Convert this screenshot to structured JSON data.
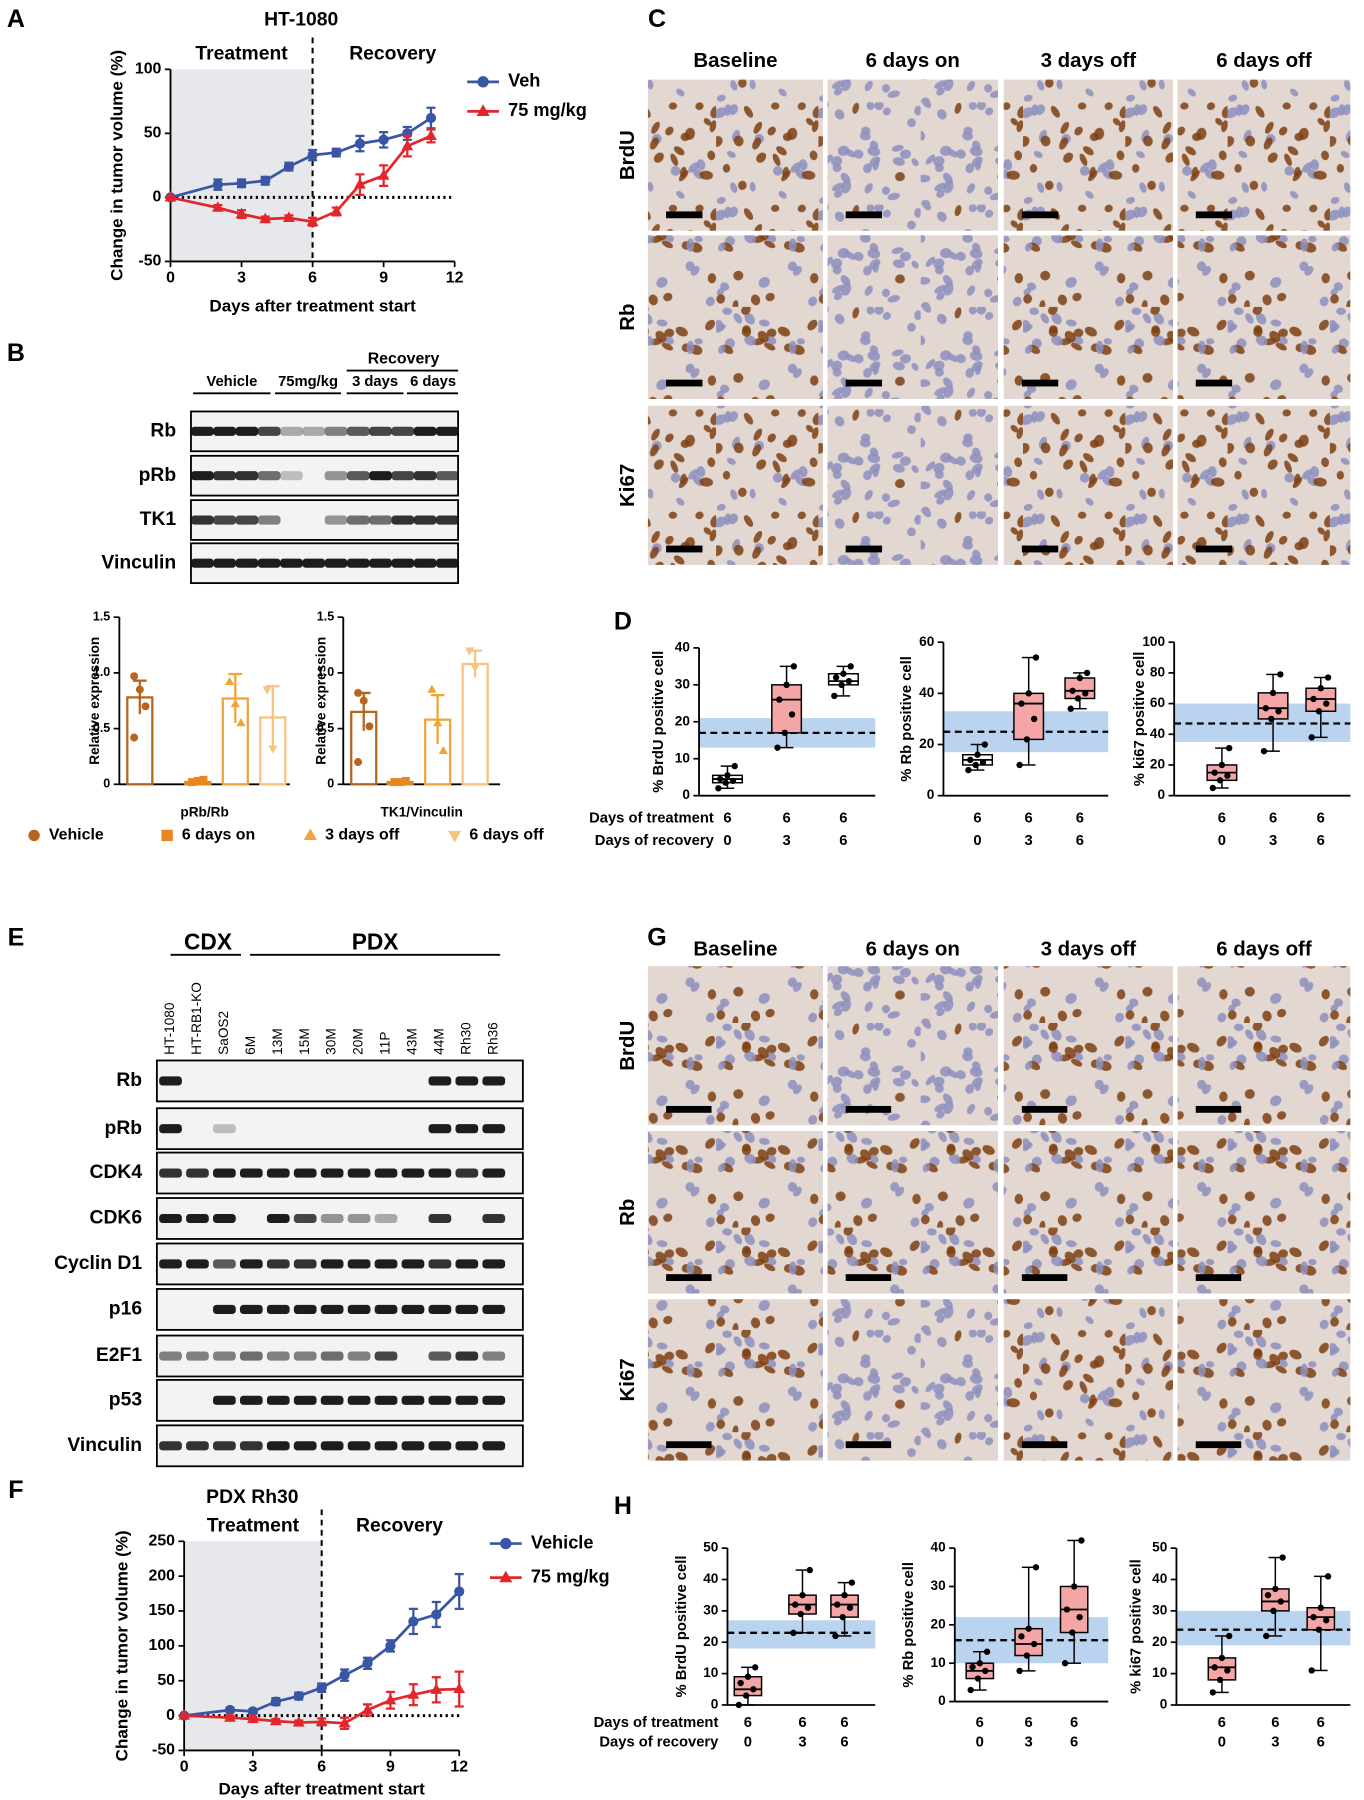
{
  "panel_letters": [
    "A",
    "B",
    "C",
    "D",
    "E",
    "F",
    "G",
    "H"
  ],
  "blot_b": {
    "lane_groups": [
      "Vehicle",
      "75mg/kg",
      "3 days",
      "6 days"
    ],
    "recovery": "Recovery",
    "rows": [
      "Rb",
      "pRb",
      "TK1",
      "Vinculin"
    ]
  },
  "blot_e": {
    "groups": [
      "CDX",
      "PDX"
    ],
    "lanes": [
      {
        "label": "HT-1080",
        "color": "#000000"
      },
      {
        "label": "HT-RB1-KO",
        "color": "#000000"
      },
      {
        "label": "SaOS2",
        "color": "#000000"
      },
      {
        "label": "6M",
        "color": "#000000"
      },
      {
        "label": "13M",
        "color": "#000000"
      },
      {
        "label": "15M",
        "color": "#000000"
      },
      {
        "label": "30M",
        "color": "#000000"
      },
      {
        "label": "20M",
        "color": "#000000"
      },
      {
        "label": "11P",
        "color": "#000000"
      },
      {
        "label": "43M",
        "color": "#000000"
      },
      {
        "label": "44M",
        "color": "#e0282e"
      },
      {
        "label": "Rh30",
        "color": "#e0282e"
      },
      {
        "label": "Rh36",
        "color": "#e0282e"
      }
    ],
    "rows": [
      "Rb",
      "pRb",
      "CDK4",
      "CDK6",
      "Cyclin D1",
      "p16",
      "E2F1",
      "p53",
      "Vinculin"
    ]
  },
  "ihc_c": {
    "columns": [
      "Baseline",
      "6 days on",
      "3 days off",
      "6 days off"
    ],
    "rows": [
      "BrdU",
      "Rb",
      "Ki67"
    ]
  },
  "ihc_g": {
    "columns": [
      "Baseline",
      "6 days on",
      "3 days off",
      "6 days off"
    ],
    "rows": [
      "BrdU",
      "Rb",
      "Ki67"
    ]
  },
  "chart_data": [
    {
      "type": "line",
      "title": "HT-1080",
      "xlabel": "Days after treatment start",
      "ylabel": "Change in tumor volume (%)",
      "annotations": [
        "Treatment",
        "Recovery"
      ],
      "shade_x": [
        0,
        6
      ],
      "xlim": [
        0,
        12
      ],
      "xticks": [
        0,
        3,
        6,
        9,
        12
      ],
      "ylim": [
        -50,
        100
      ],
      "yticks": [
        -50,
        0,
        50,
        100
      ],
      "x": [
        0,
        2,
        3,
        4,
        5,
        6,
        7,
        8,
        9,
        10,
        11
      ],
      "series": [
        {
          "name": "Veh",
          "color": "#3a55a4",
          "marker": "circle",
          "values": [
            0,
            10,
            11,
            13,
            24,
            33,
            35,
            42,
            45,
            50,
            62
          ],
          "errors": [
            0,
            4,
            3,
            3,
            3,
            4,
            3,
            6,
            6,
            5,
            8
          ]
        },
        {
          "name": "75 mg/kg",
          "color": "#e3262b",
          "marker": "triangle",
          "values": [
            0,
            -8,
            -13,
            -17,
            -16,
            -19,
            -11,
            10,
            17,
            40,
            48
          ],
          "errors": [
            0,
            2,
            3,
            2,
            2,
            3,
            3,
            8,
            8,
            8,
            5
          ]
        }
      ]
    },
    {
      "type": "bar",
      "xlabel": "pRb/Rb",
      "ylabel": "Relative expression",
      "ylim": [
        0,
        1.5
      ],
      "yticks": [
        0,
        0.5,
        {
          "value": 1,
          "label": "1.0"
        },
        1.5
      ],
      "series": [
        {
          "name": "Vehicle",
          "color": "#b5651d",
          "marker": "circle",
          "values": [
            0.78
          ],
          "errors": [
            0.15
          ],
          "points": [
            [
              0.97,
              0.85,
              0.7,
              0.42
            ]
          ]
        },
        {
          "name": "6 days on",
          "color": "#e8861f",
          "marker": "square",
          "values": [
            0.02
          ],
          "errors": [
            0.01
          ],
          "points": [
            [
              0.02,
              0.03,
              0.04
            ]
          ]
        },
        {
          "name": "3 days off",
          "color": "#f2a43a",
          "marker": "triangle",
          "values": [
            0.77
          ],
          "errors": [
            0.22
          ],
          "points": [
            [
              0.92,
              0.72,
              0.55
            ]
          ]
        },
        {
          "name": "6 days off",
          "color": "#f6c47e",
          "marker": "triangle-down",
          "values": [
            0.6
          ],
          "errors": [
            0.28
          ],
          "points": [
            [
              0.85,
              0.32
            ]
          ]
        }
      ]
    },
    {
      "type": "bar",
      "xlabel": "TK1/Vinculin",
      "ylabel": "Relative expression",
      "ylim": [
        0,
        1.5
      ],
      "yticks": [
        0,
        0.5,
        {
          "value": 1,
          "label": "1.0"
        },
        1.5
      ],
      "series": [
        {
          "color": "#b5651d",
          "marker": "circle",
          "values": [
            0.65
          ],
          "errors": [
            0.17
          ],
          "points": [
            [
              0.82,
              0.75,
              0.52,
              0.2
            ]
          ]
        },
        {
          "color": "#e8861f",
          "marker": "square",
          "values": [
            0.02
          ],
          "errors": [
            0.01
          ],
          "points": [
            [
              0.02,
              0.02,
              0.03
            ]
          ]
        },
        {
          "color": "#f2a43a",
          "marker": "triangle",
          "values": [
            0.58
          ],
          "errors": [
            0.22
          ],
          "points": [
            [
              0.85,
              0.55,
              0.3
            ]
          ]
        },
        {
          "color": "#f6c47e",
          "marker": "triangle-down",
          "values": [
            1.08
          ],
          "errors": [
            0.12
          ],
          "points": [
            [
              1.2,
              1.05
            ]
          ]
        }
      ]
    },
    {
      "type": "box",
      "ylabel": "% BrdU positive cell",
      "row_labels": [
        "Days of treatment",
        "Days of recovery"
      ],
      "treatment_days": [
        6,
        6,
        6
      ],
      "recovery_days": [
        0,
        3,
        6
      ],
      "ylim": [
        0,
        40
      ],
      "yticks": [
        0,
        10,
        20,
        30,
        40
      ],
      "reference_band": [
        13,
        21
      ],
      "reference_line": 17,
      "band_color": "#a9c9ec",
      "box_colors": [
        "#ffffff",
        "#f4a6a6",
        "#ffffff"
      ],
      "boxes": [
        {
          "min": 2,
          "q1": 3.5,
          "median": 4.5,
          "q3": 5.5,
          "max": 8,
          "points": [
            2,
            3.5,
            4,
            4.5,
            5.5,
            8
          ]
        },
        {
          "min": 13,
          "q1": 17,
          "median": 26,
          "q3": 30,
          "max": 35,
          "points": [
            13,
            17,
            22,
            26,
            30,
            35
          ]
        },
        {
          "min": 27,
          "q1": 30,
          "median": 31,
          "q3": 33,
          "max": 35,
          "points": [
            27,
            30,
            31,
            32,
            33,
            35
          ]
        }
      ]
    },
    {
      "type": "box",
      "ylabel": "% Rb positive cell",
      "treatment_days": [
        6,
        6,
        6
      ],
      "recovery_days": [
        0,
        3,
        6
      ],
      "ylim": [
        0,
        60
      ],
      "yticks": [
        0,
        20,
        40,
        60
      ],
      "reference_band": [
        17,
        33
      ],
      "reference_line": 25,
      "band_color": "#a9c9ec",
      "box_colors": [
        "#ffffff",
        "#f4a6a6",
        "#f4a6a6"
      ],
      "boxes": [
        {
          "min": 10,
          "q1": 12,
          "median": 14,
          "q3": 16,
          "max": 20,
          "points": [
            10,
            12,
            13,
            14,
            16,
            20
          ]
        },
        {
          "min": 12,
          "q1": 22,
          "median": 36,
          "q3": 40,
          "max": 54,
          "points": [
            12,
            22,
            30,
            36,
            40,
            54
          ]
        },
        {
          "min": 34,
          "q1": 38,
          "median": 41,
          "q3": 46,
          "max": 48,
          "points": [
            34,
            38,
            40,
            41,
            46,
            48
          ]
        }
      ]
    },
    {
      "type": "box",
      "ylabel": "% ki67 positive cell",
      "treatment_days": [
        6,
        6,
        6
      ],
      "recovery_days": [
        0,
        3,
        6
      ],
      "ylim": [
        0,
        100
      ],
      "yticks": [
        0,
        20,
        40,
        60,
        80,
        100
      ],
      "reference_band": [
        35,
        60
      ],
      "reference_line": 47,
      "band_color": "#a9c9ec",
      "box_colors": [
        "#f4a6a6",
        "#f4a6a6",
        "#f4a6a6"
      ],
      "boxes": [
        {
          "min": 5,
          "q1": 10,
          "median": 15,
          "q3": 20,
          "max": 31,
          "points": [
            5,
            10,
            13,
            15,
            20,
            31
          ]
        },
        {
          "min": 29,
          "q1": 50,
          "median": 57,
          "q3": 67,
          "max": 79,
          "points": [
            29,
            50,
            55,
            57,
            67,
            79
          ]
        },
        {
          "min": 38,
          "q1": 55,
          "median": 63,
          "q3": 70,
          "max": 77,
          "points": [
            38,
            55,
            60,
            63,
            70,
            77
          ]
        }
      ]
    },
    {
      "type": "line",
      "title": "PDX Rh30",
      "xlabel": "Days after treatment start",
      "ylabel": "Change in tumor volume (%)",
      "annotations": [
        "Treatment",
        "Recovery"
      ],
      "shade_x": [
        0,
        6
      ],
      "xlim": [
        0,
        12
      ],
      "xticks": [
        0,
        3,
        6,
        9,
        12
      ],
      "ylim": [
        -50,
        250
      ],
      "yticks": [
        -50,
        0,
        50,
        100,
        150,
        200,
        250
      ],
      "x": [
        0,
        2,
        3,
        4,
        5,
        6,
        7,
        8,
        9,
        10,
        11,
        12
      ],
      "series": [
        {
          "name": "Vehicle",
          "color": "#3a55a4",
          "marker": "circle",
          "values": [
            0,
            8,
            6,
            20,
            28,
            40,
            58,
            75,
            100,
            135,
            145,
            178
          ],
          "errors": [
            0,
            3,
            3,
            5,
            5,
            6,
            8,
            8,
            8,
            18,
            18,
            25
          ]
        },
        {
          "name": "75 mg/kg",
          "color": "#e3262b",
          "marker": "triangle",
          "values": [
            0,
            -3,
            -5,
            -8,
            -10,
            -9,
            -11,
            8,
            22,
            30,
            37,
            38
          ],
          "errors": [
            0,
            3,
            3,
            3,
            3,
            5,
            8,
            8,
            12,
            15,
            18,
            25
          ]
        }
      ]
    },
    {
      "type": "box",
      "ylabel": "% BrdU positive cell",
      "row_labels": [
        "Days of treatment",
        "Days of recovery"
      ],
      "treatment_days": [
        6,
        6,
        6
      ],
      "recovery_days": [
        0,
        3,
        6
      ],
      "ylim": [
        0,
        50
      ],
      "yticks": [
        0,
        10,
        20,
        30,
        40,
        50
      ],
      "reference_band": [
        18,
        27
      ],
      "reference_line": 23,
      "band_color": "#a9c9ec",
      "box_colors": [
        "#f4a6a6",
        "#f4a6a6",
        "#f4a6a6"
      ],
      "boxes": [
        {
          "min": 0,
          "q1": 3,
          "median": 5,
          "q3": 9,
          "max": 12,
          "points": [
            0,
            3,
            5,
            7,
            9,
            12
          ]
        },
        {
          "min": 23,
          "q1": 29,
          "median": 32,
          "q3": 35,
          "max": 43,
          "points": [
            23,
            29,
            31,
            32,
            35,
            43
          ]
        },
        {
          "min": 22,
          "q1": 28,
          "median": 32,
          "q3": 35,
          "max": 39,
          "points": [
            22,
            28,
            31,
            32,
            35,
            39
          ]
        }
      ]
    },
    {
      "type": "box",
      "ylabel": "% Rb positive cell",
      "treatment_days": [
        6,
        6,
        6
      ],
      "recovery_days": [
        0,
        3,
        6
      ],
      "ylim": [
        0,
        40
      ],
      "yticks": [
        0,
        10,
        20,
        30,
        40
      ],
      "reference_band": [
        10,
        22
      ],
      "reference_line": 16,
      "band_color": "#a9c9ec",
      "box_colors": [
        "#f4a6a6",
        "#f4a6a6",
        "#f4a6a6"
      ],
      "boxes": [
        {
          "min": 3,
          "q1": 6,
          "median": 8,
          "q3": 10,
          "max": 13,
          "points": [
            3,
            6,
            8,
            9,
            10,
            13
          ]
        },
        {
          "min": 8,
          "q1": 12,
          "median": 15,
          "q3": 19,
          "max": 35,
          "points": [
            8,
            12,
            15,
            17,
            19,
            35
          ]
        },
        {
          "min": 10,
          "q1": 18,
          "median": 24,
          "q3": 30,
          "max": 42,
          "points": [
            10,
            18,
            22,
            24,
            30,
            42
          ]
        }
      ]
    },
    {
      "type": "box",
      "ylabel": "% ki67 positive cell",
      "treatment_days": [
        6,
        6,
        6
      ],
      "recovery_days": [
        0,
        3,
        6
      ],
      "ylim": [
        0,
        50
      ],
      "yticks": [
        0,
        10,
        20,
        30,
        40,
        50
      ],
      "reference_band": [
        19,
        30
      ],
      "reference_line": 24,
      "band_color": "#a9c9ec",
      "box_colors": [
        "#f4a6a6",
        "#f4a6a6",
        "#f4a6a6"
      ],
      "boxes": [
        {
          "min": 4,
          "q1": 8,
          "median": 12,
          "q3": 15,
          "max": 22,
          "points": [
            4,
            8,
            11,
            12,
            15,
            22
          ]
        },
        {
          "min": 22,
          "q1": 30,
          "median": 33,
          "q3": 37,
          "max": 47,
          "points": [
            22,
            30,
            33,
            35,
            37,
            47
          ]
        },
        {
          "min": 11,
          "q1": 24,
          "median": 28,
          "q3": 31,
          "max": 41,
          "points": [
            11,
            24,
            27,
            28,
            31,
            41
          ]
        }
      ]
    }
  ]
}
